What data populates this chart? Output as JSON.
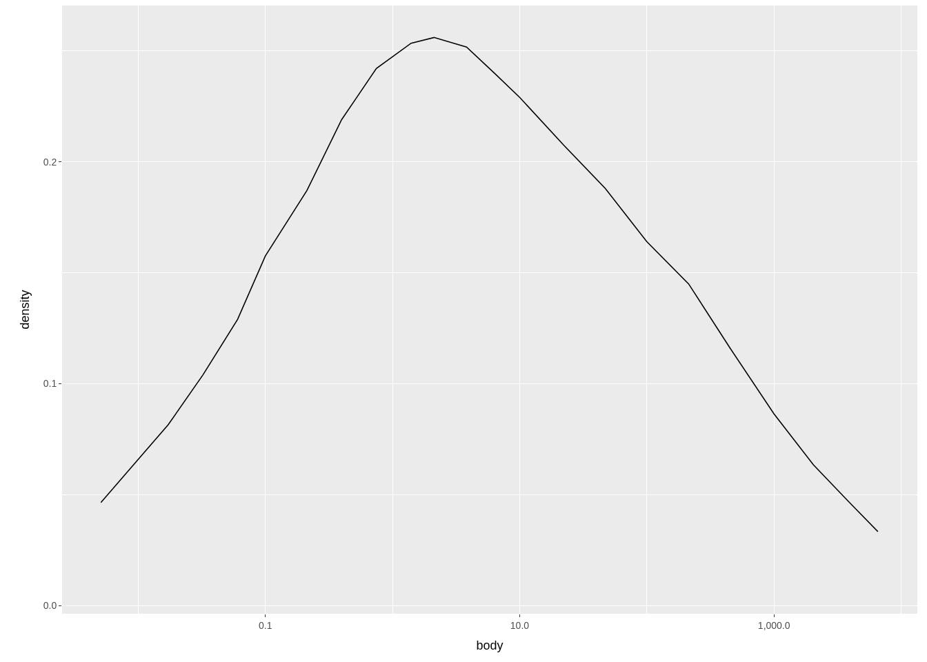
{
  "chart_data": {
    "type": "line",
    "xlabel": "body",
    "ylabel": "density",
    "log": "x",
    "grid": true,
    "marker": "none",
    "line_style": "solid",
    "xlim": [
      0.00252,
      13400
    ],
    "ylim": [
      -0.0036,
      0.2704
    ],
    "xticks": [
      {
        "value": 0.01,
        "label": null
      },
      {
        "value": 0.1,
        "label": "0.1"
      },
      {
        "value": 1,
        "label": null
      },
      {
        "value": 10,
        "label": "10.0"
      },
      {
        "value": 100,
        "label": null
      },
      {
        "value": 1000,
        "label": "1,000.0"
      },
      {
        "value": 10000,
        "label": null
      }
    ],
    "yticks": [
      {
        "value": 0,
        "label": "0.0"
      },
      {
        "value": 0.05,
        "label": null
      },
      {
        "value": 0.1,
        "label": "0.1"
      },
      {
        "value": 0.15,
        "label": null
      },
      {
        "value": 0.2,
        "label": "0.2"
      },
      {
        "value": 0.25,
        "label": null
      }
    ],
    "series": [
      {
        "color": "#000000",
        "x": [
          0.00509,
          0.00919,
          0.0172,
          0.0323,
          0.0605,
          0.1,
          0.212,
          0.398,
          0.746,
          1.4,
          2.12,
          3.82,
          6.31,
          10,
          22.2,
          47.1,
          100,
          213,
          452,
          1000,
          2040,
          3830,
          6560
        ],
        "values": [
          0.0465,
          0.0635,
          0.0815,
          0.104,
          0.129,
          0.1576,
          0.187,
          0.219,
          0.242,
          0.2534,
          0.256,
          0.2517,
          0.24,
          0.229,
          0.2075,
          0.188,
          0.164,
          0.145,
          0.116,
          0.0864,
          0.0635,
          0.0471,
          0.0334
        ]
      }
    ]
  }
}
